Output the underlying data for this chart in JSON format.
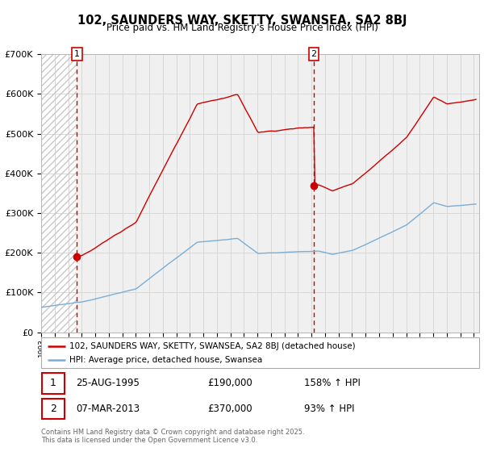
{
  "title": "102, SAUNDERS WAY, SKETTY, SWANSEA, SA2 8BJ",
  "subtitle": "Price paid vs. HM Land Registry's House Price Index (HPI)",
  "sale1_label": "25-AUG-1995",
  "sale1_price_str": "£190,000",
  "sale1_hpi": "158% ↑ HPI",
  "sale2_label": "07-MAR-2013",
  "sale2_price_str": "£370,000",
  "sale2_hpi": "93% ↑ HPI",
  "legend_line1": "102, SAUNDERS WAY, SKETTY, SWANSEA, SA2 8BJ (detached house)",
  "legend_line2": "HPI: Average price, detached house, Swansea",
  "footer": "Contains HM Land Registry data © Crown copyright and database right 2025.\nThis data is licensed under the Open Government Licence v3.0.",
  "red_line_color": "#cc0000",
  "blue_line_color": "#7aaed6",
  "grid_color": "#d8d8d8",
  "ylim": [
    0,
    700000
  ],
  "yticks": [
    0,
    100000,
    200000,
    300000,
    400000,
    500000,
    600000,
    700000
  ],
  "sale1_t": 1995.646,
  "sale1_price": 190000,
  "sale2_t": 2013.17,
  "sale2_price": 370000
}
